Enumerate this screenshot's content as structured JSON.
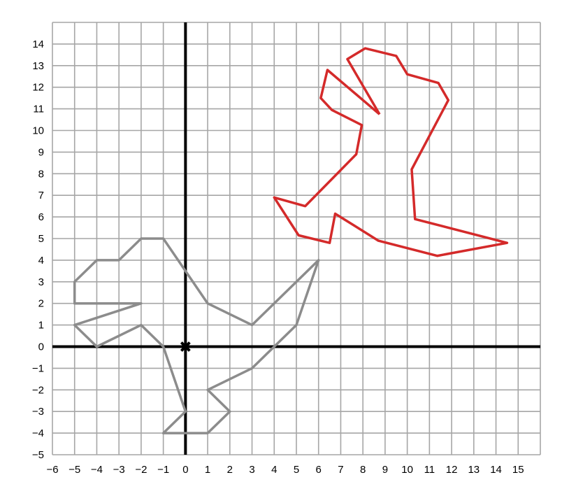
{
  "chart_data": {
    "type": "line",
    "title": "",
    "xlabel": "",
    "ylabel": "",
    "xlim": [
      -6,
      16
    ],
    "ylim": [
      -5,
      15
    ],
    "grid": true,
    "x_ticks": [
      "−6",
      "−5",
      "−4",
      "−3",
      "−2",
      "−1",
      "0",
      "1",
      "2",
      "3",
      "4",
      "5",
      "6",
      "7",
      "8",
      "9",
      "10",
      "11",
      "12",
      "13",
      "14",
      "15"
    ],
    "y_ticks": [
      "14",
      "13",
      "12",
      "11",
      "10",
      "9",
      "8",
      "7",
      "6",
      "5",
      "4",
      "3",
      "2",
      "1",
      "0",
      "−1",
      "−2",
      "−3",
      "−4",
      "−5"
    ],
    "x_tick_values": [
      -6,
      -5,
      -4,
      -3,
      -2,
      -1,
      0,
      1,
      2,
      3,
      4,
      5,
      6,
      7,
      8,
      9,
      10,
      11,
      12,
      13,
      14,
      15
    ],
    "y_tick_values": [
      14,
      13,
      12,
      11,
      10,
      9,
      8,
      7,
      6,
      5,
      4,
      3,
      2,
      1,
      0,
      -1,
      -2,
      -3,
      -4,
      -5
    ],
    "origin_marker": [
      0,
      0
    ],
    "series": [
      {
        "color": "#8c8c8c",
        "closed": true,
        "points": [
          [
            -2,
            5
          ],
          [
            -1,
            5
          ],
          [
            1,
            2
          ],
          [
            3,
            1
          ],
          [
            6,
            4
          ],
          [
            5,
            1
          ],
          [
            4,
            0
          ],
          [
            3,
            -1
          ],
          [
            1,
            -2
          ],
          [
            2,
            -3
          ],
          [
            1,
            -4
          ],
          [
            -1,
            -4
          ],
          [
            0,
            -3
          ],
          [
            -1,
            0
          ],
          [
            -2,
            1
          ],
          [
            -4,
            0
          ],
          [
            -5,
            1
          ],
          [
            -2,
            2
          ],
          [
            -5,
            2
          ],
          [
            -5,
            3
          ],
          [
            -4,
            4
          ],
          [
            -3,
            4
          ]
        ]
      },
      {
        "color": "#d42a2a",
        "closed": false,
        "points": [
          [
            8.75,
            10.75
          ],
          [
            7.3,
            13.3
          ],
          [
            8.1,
            13.8
          ],
          [
            9.5,
            13.45
          ],
          [
            10,
            12.6
          ],
          [
            11.4,
            12.2
          ],
          [
            11.85,
            11.4
          ],
          [
            10.2,
            8.2
          ],
          [
            10.35,
            5.9
          ],
          [
            14.5,
            4.8
          ],
          [
            11.35,
            4.2
          ],
          [
            8.7,
            4.9
          ],
          [
            6.75,
            6.15
          ],
          [
            6.5,
            4.8
          ],
          [
            5.1,
            5.15
          ],
          [
            4,
            6.9
          ],
          [
            5.4,
            6.5
          ],
          [
            7.7,
            8.9
          ],
          [
            7.95,
            10.25
          ],
          [
            6.6,
            10.95
          ],
          [
            6.1,
            11.5
          ],
          [
            6.4,
            12.8
          ],
          [
            8.75,
            10.75
          ]
        ]
      }
    ]
  }
}
